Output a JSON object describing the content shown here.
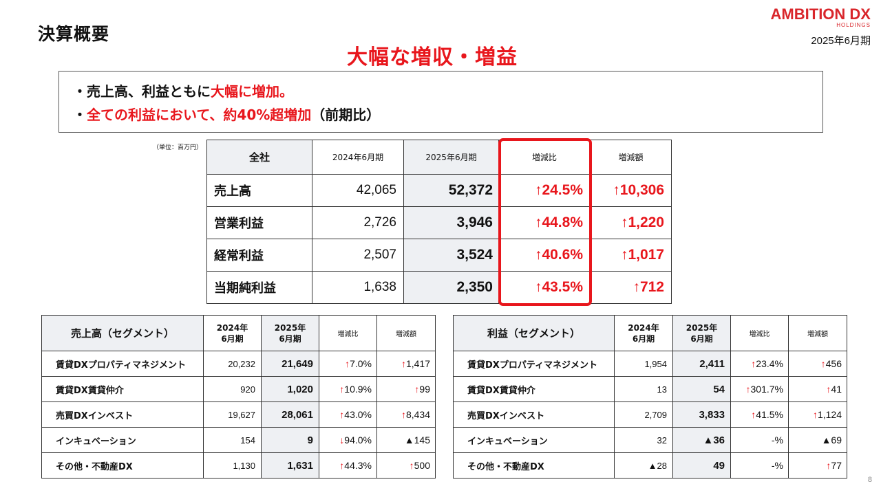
{
  "header": {
    "title": "決算概要",
    "logo_main": "AMBITION DX",
    "logo_sub": "HOLDINGS",
    "period": "2025年6月期"
  },
  "headline": "大幅な増収・増益",
  "summary": {
    "line1_prefix": "・売上高、利益ともに",
    "line1_highlight": "大幅に増加。",
    "line2_bullet": "・",
    "line2_highlight": "全ての利益において、約40%超増加",
    "line2_suffix": "（前期比）"
  },
  "unit_note": "（単位：百万円）",
  "main_table": {
    "headers": [
      "全社",
      "2024年6月期",
      "2025年6月期",
      "増減比",
      "増減額"
    ],
    "rows": [
      {
        "label": "売上高",
        "prev": "42,065",
        "cur": "52,372",
        "pct": "24.5%",
        "amt": "10,306"
      },
      {
        "label": "営業利益",
        "prev": "2,726",
        "cur": "3,946",
        "pct": "44.8%",
        "amt": "1,220"
      },
      {
        "label": "経常利益",
        "prev": "2,507",
        "cur": "3,524",
        "pct": "40.6%",
        "amt": "1,017"
      },
      {
        "label": "当期純利益",
        "prev": "1,638",
        "cur": "2,350",
        "pct": "43.5%",
        "amt": "712"
      }
    ]
  },
  "sales_segment": {
    "headers": [
      "売上高（セグメント）",
      "2024年",
      "6月期",
      "2025年",
      "6月期",
      "増減比",
      "増減額"
    ],
    "rows": [
      {
        "label": "賃貸DXプロパティマネジメント",
        "prev": "20,232",
        "cur": "21,649",
        "pct": "7.0%",
        "amt": "1,417",
        "dir": "up",
        "amt_dir": "up"
      },
      {
        "label": "賃貸DX賃貸仲介",
        "prev": "920",
        "cur": "1,020",
        "pct": "10.9%",
        "amt": "99",
        "dir": "up",
        "amt_dir": "up"
      },
      {
        "label": "売買DXインベスト",
        "prev": "19,627",
        "cur": "28,061",
        "pct": "43.0%",
        "amt": "8,434",
        "dir": "up",
        "amt_dir": "up"
      },
      {
        "label": "インキュベーション",
        "prev": "154",
        "cur": "9",
        "pct": "94.0%",
        "amt": "▲145",
        "dir": "down",
        "amt_dir": "none"
      },
      {
        "label": "その他・不動産DX",
        "prev": "1,130",
        "cur": "1,631",
        "pct": "44.3%",
        "amt": "500",
        "dir": "up",
        "amt_dir": "up"
      }
    ]
  },
  "profit_segment": {
    "headers": [
      "利益（セグメント）",
      "2024年",
      "6月期",
      "2025年",
      "6月期",
      "増減比",
      "増減額"
    ],
    "rows": [
      {
        "label": "賃貸DXプロパティマネジメント",
        "prev": "1,954",
        "cur": "2,411",
        "pct": "23.4%",
        "amt": "456",
        "dir": "up",
        "amt_dir": "up"
      },
      {
        "label": "賃貸DX賃貸仲介",
        "prev": "13",
        "cur": "54",
        "pct": "301.7%",
        "amt": "41",
        "dir": "up",
        "amt_dir": "up"
      },
      {
        "label": "売買DXインベスト",
        "prev": "2,709",
        "cur": "3,833",
        "pct": "41.5%",
        "amt": "1,124",
        "dir": "up",
        "amt_dir": "up"
      },
      {
        "label": "インキュベーション",
        "prev": "32",
        "cur": "▲36",
        "pct": "-%",
        "amt": "▲69",
        "dir": "none",
        "amt_dir": "none"
      },
      {
        "label": "その他・不動産DX",
        "prev": "▲28",
        "cur": "49",
        "pct": "-%",
        "amt": "77",
        "dir": "none",
        "amt_dir": "up"
      }
    ]
  },
  "page_number": "8",
  "colors": {
    "accent_red": "#e8161c",
    "header_gray": "#eef0f3",
    "logo_red": "#d9262b"
  }
}
